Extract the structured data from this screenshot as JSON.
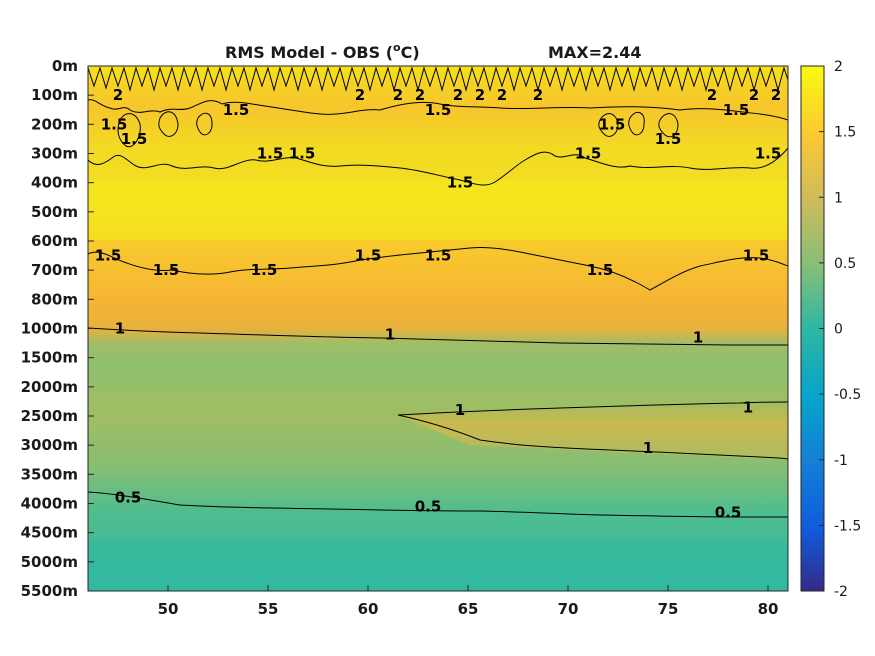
{
  "chart_data": {
    "type": "heatmap",
    "title": "RMS Model - OBS (°C)",
    "title_main": "RMS Model - OBS (",
    "title_sup": "o",
    "title_end": "C)",
    "max_label": "MAX=2.44",
    "x_ticks": [
      "50",
      "55",
      "60",
      "65",
      "70",
      "75",
      "80"
    ],
    "x_tick_values": [
      50,
      55,
      60,
      65,
      70,
      75,
      80
    ],
    "xlim": [
      46,
      81
    ],
    "y_ticks": [
      "0m",
      "100m",
      "200m",
      "300m",
      "400m",
      "500m",
      "600m",
      "700m",
      "800m",
      "1000m",
      "1500m",
      "2000m",
      "2500m",
      "3000m",
      "3500m",
      "4000m",
      "4500m",
      "5000m",
      "5500m"
    ],
    "colorbar": {
      "ticks": [
        "2",
        "1.5",
        "1",
        "0.5",
        "0",
        "-0.5",
        "-1",
        "-1.5",
        "-2"
      ],
      "tick_values": [
        2,
        1.5,
        1,
        0.5,
        0,
        -0.5,
        -1,
        -1.5,
        -2
      ],
      "range": [
        -2,
        2
      ],
      "colormap": "parula",
      "colors": [
        "#352a87",
        "#0f5cdd",
        "#1481d6",
        "#06a4ca",
        "#2eb7a4",
        "#87bf77",
        "#d1bb59",
        "#fec832",
        "#f9fb0e"
      ]
    },
    "contour_levels": [
      0.5,
      1,
      1.5,
      2
    ],
    "contour_labels": [
      {
        "text": "2",
        "x": 47.5,
        "depth": "100m"
      },
      {
        "text": "2",
        "x": 59.6,
        "depth": "100m"
      },
      {
        "text": "2",
        "x": 61.5,
        "depth": "100m"
      },
      {
        "text": "2",
        "x": 62.6,
        "depth": "100m"
      },
      {
        "text": "2",
        "x": 64.5,
        "depth": "100m"
      },
      {
        "text": "2",
        "x": 65.6,
        "depth": "100m"
      },
      {
        "text": "2",
        "x": 66.7,
        "depth": "100m"
      },
      {
        "text": "2",
        "x": 68.5,
        "depth": "100m"
      },
      {
        "text": "2",
        "x": 77.2,
        "depth": "100m"
      },
      {
        "text": "2",
        "x": 79.3,
        "depth": "100m"
      },
      {
        "text": "2",
        "x": 80.4,
        "depth": "100m"
      },
      {
        "text": "1.5",
        "x": 47.3,
        "depth": "200m"
      },
      {
        "text": "1.5",
        "x": 48.3,
        "depth": "250m"
      },
      {
        "text": "1.5",
        "x": 53.4,
        "depth": "150m"
      },
      {
        "text": "1.5",
        "x": 55.1,
        "depth": "300m"
      },
      {
        "text": "1.5",
        "x": 56.7,
        "depth": "300m"
      },
      {
        "text": "1.5",
        "x": 63.5,
        "depth": "150m"
      },
      {
        "text": "1.5",
        "x": 64.6,
        "depth": "400m"
      },
      {
        "text": "1.5",
        "x": 71.0,
        "depth": "300m"
      },
      {
        "text": "1.5",
        "x": 72.2,
        "depth": "200m"
      },
      {
        "text": "1.5",
        "x": 75.0,
        "depth": "250m"
      },
      {
        "text": "1.5",
        "x": 78.4,
        "depth": "150m"
      },
      {
        "text": "1.5",
        "x": 80.0,
        "depth": "300m"
      },
      {
        "text": "1.5",
        "x": 47.0,
        "depth": "650m"
      },
      {
        "text": "1.5",
        "x": 49.9,
        "depth": "700m"
      },
      {
        "text": "1.5",
        "x": 54.8,
        "depth": "700m"
      },
      {
        "text": "1.5",
        "x": 63.5,
        "depth": "650m"
      },
      {
        "text": "1.5",
        "x": 71.6,
        "depth": "700m"
      },
      {
        "text": "1.5",
        "x": 60.0,
        "depth": "650m"
      },
      {
        "text": "1.5",
        "x": 79.4,
        "depth": "650m"
      },
      {
        "text": "1",
        "x": 47.6,
        "depth": "1000m"
      },
      {
        "text": "1",
        "x": 61.1,
        "depth": "1100m"
      },
      {
        "text": "1",
        "x": 76.5,
        "depth": "1150m"
      },
      {
        "text": "1",
        "x": 64.6,
        "depth": "2400m"
      },
      {
        "text": "1",
        "x": 79.0,
        "depth": "2350m"
      },
      {
        "text": "1",
        "x": 74.0,
        "depth": "3050m"
      },
      {
        "text": "0.5",
        "x": 48.0,
        "depth": "3900m"
      },
      {
        "text": "0.5",
        "x": 63.0,
        "depth": "4050m"
      },
      {
        "text": "0.5",
        "x": 78.0,
        "depth": "4150m"
      }
    ]
  }
}
